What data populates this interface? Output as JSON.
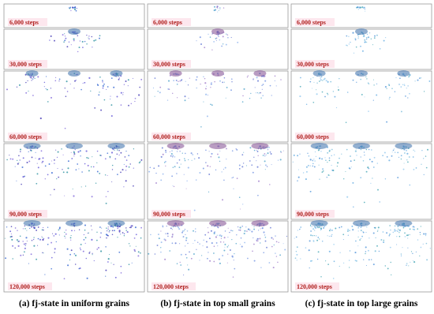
{
  "figure": {
    "columns": [
      {
        "caption": "(a) fj-state in uniform grains",
        "panels": [
          "6,000 steps",
          "30,000 steps",
          "60,000 steps",
          "90,000 steps",
          "120,000 steps"
        ]
      },
      {
        "caption": "(b) fj-state in top small grains",
        "panels": [
          "6,000 steps",
          "30,000 steps",
          "60,000 steps",
          "90,000 steps",
          "120,000 steps"
        ]
      },
      {
        "caption": "(c) fj-state in top large grains",
        "panels": [
          "6,000 steps",
          "30,000 steps",
          "60,000 steps",
          "90,000 steps",
          "120,000 steps"
        ]
      }
    ]
  }
}
